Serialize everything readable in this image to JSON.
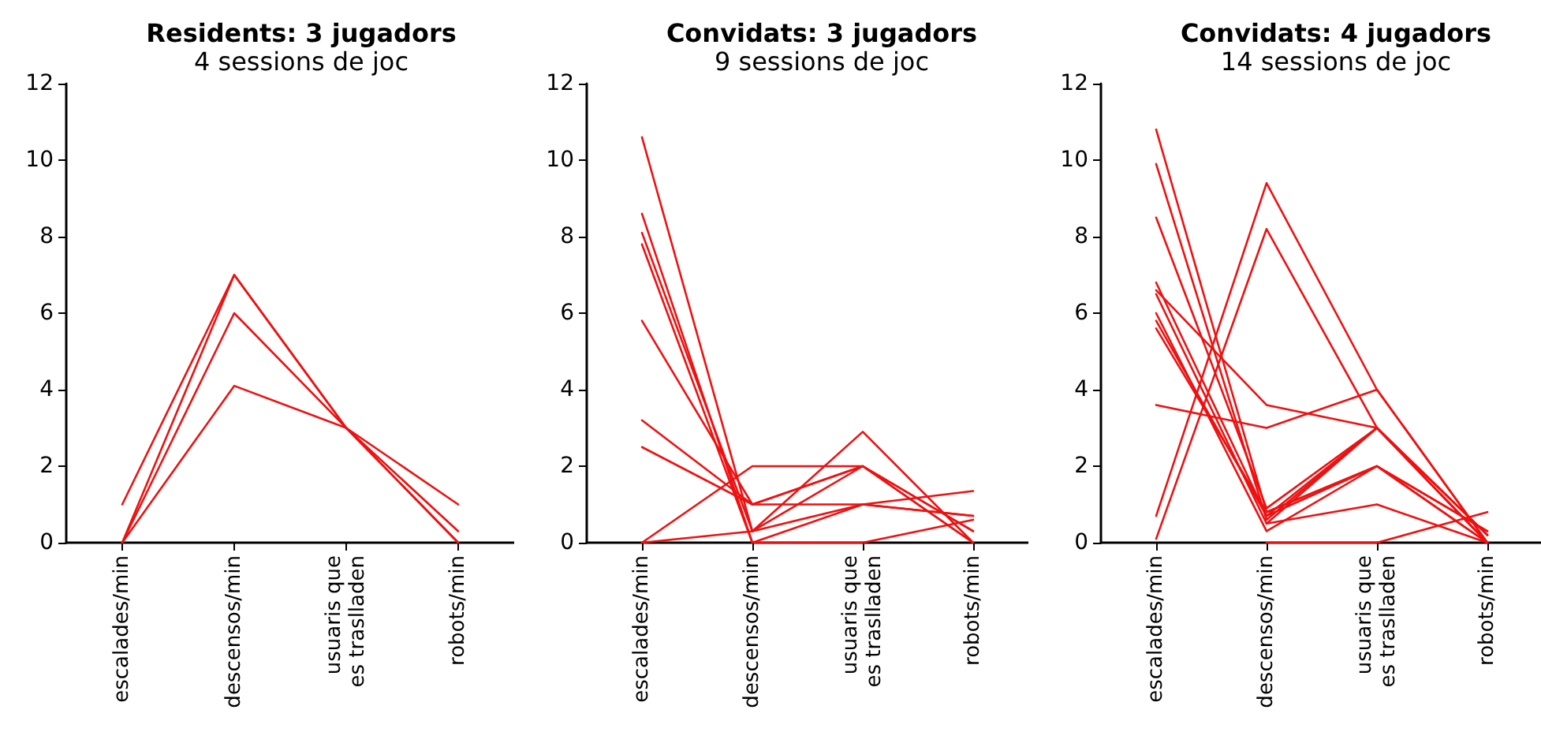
{
  "chart_data": [
    {
      "type": "line",
      "title": "Residents: 3 jugadors",
      "subtitle": "4 sessions de joc",
      "categories": [
        "escalades/min",
        "descensos/min",
        "usuaris que\nes traslladen",
        "robots/min"
      ],
      "ylim": [
        0,
        12
      ],
      "yticks": [
        0,
        2,
        4,
        6,
        8,
        10,
        12
      ],
      "grid": false,
      "marker": "none",
      "line_style": "solid",
      "series": [
        {
          "color": "#ee1111",
          "values": [
            1,
            7,
            3,
            0
          ]
        },
        {
          "color": "#ee1111",
          "values": [
            0,
            7,
            3,
            0.3
          ]
        },
        {
          "color": "#ee1111",
          "values": [
            0,
            6,
            3,
            0
          ]
        },
        {
          "color": "#ee1111",
          "values": [
            0,
            4.1,
            3,
            1
          ]
        }
      ]
    },
    {
      "type": "line",
      "title": "Convidats: 3 jugadors",
      "subtitle": "9 sessions de joc",
      "categories": [
        "escalades/min",
        "descensos/min",
        "usuaris que\nes traslladen",
        "robots/min"
      ],
      "ylim": [
        0,
        12
      ],
      "yticks": [
        0,
        2,
        4,
        6,
        8,
        10,
        12
      ],
      "grid": false,
      "marker": "none",
      "line_style": "solid",
      "series": [
        {
          "color": "#ee1111",
          "values": [
            10.6,
            0.3,
            2,
            0.3
          ]
        },
        {
          "color": "#ee1111",
          "values": [
            8.6,
            0,
            1,
            0.7
          ]
        },
        {
          "color": "#ee1111",
          "values": [
            8.1,
            0.3,
            2.9,
            0
          ]
        },
        {
          "color": "#ee1111",
          "values": [
            7.8,
            0,
            0,
            0.6
          ]
        },
        {
          "color": "#ee1111",
          "values": [
            5.8,
            1,
            2,
            0.3
          ]
        },
        {
          "color": "#ee1111",
          "values": [
            3.2,
            1,
            1,
            0.7
          ]
        },
        {
          "color": "#ee1111",
          "values": [
            2.5,
            1,
            2,
            0
          ]
        },
        {
          "color": "#ee1111",
          "values": [
            0,
            0.3,
            1,
            1.35
          ]
        },
        {
          "color": "#ee1111",
          "values": [
            0,
            2,
            2,
            0
          ]
        }
      ]
    },
    {
      "type": "line",
      "title": "Convidats: 4 jugadors",
      "subtitle": "14 sessions de joc",
      "categories": [
        "escalades/min",
        "descensos/min",
        "usuaris que\nes traslladen",
        "robots/min"
      ],
      "ylim": [
        0,
        12
      ],
      "yticks": [
        0,
        2,
        4,
        6,
        8,
        10,
        12
      ],
      "grid": false,
      "marker": "none",
      "line_style": "solid",
      "series": [
        {
          "color": "#ee1111",
          "values": [
            null,
            0.5,
            3,
            0.2
          ]
        },
        {
          "color": "#ee1111",
          "values": [
            null,
            0,
            0,
            0.8
          ]
        },
        {
          "color": "#ee1111",
          "values": [
            10.8,
            0.8,
            2,
            0
          ]
        },
        {
          "color": "#ee1111",
          "values": [
            9.9,
            0.6,
            3,
            0.2
          ]
        },
        {
          "color": "#ee1111",
          "values": [
            8.5,
            0.9,
            3,
            0
          ]
        },
        {
          "color": "#ee1111",
          "values": [
            6.8,
            0.7,
            2,
            0.3
          ]
        },
        {
          "color": "#ee1111",
          "values": [
            6.6,
            3.6,
            3,
            0
          ]
        },
        {
          "color": "#ee1111",
          "values": [
            6.5,
            0.5,
            1,
            0
          ]
        },
        {
          "color": "#ee1111",
          "values": [
            6,
            0.3,
            2,
            0.3
          ]
        },
        {
          "color": "#ee1111",
          "values": [
            5.8,
            0.7,
            3,
            0.2
          ]
        },
        {
          "color": "#ee1111",
          "values": [
            5.6,
            0.8,
            2,
            0
          ]
        },
        {
          "color": "#ee1111",
          "values": [
            3.6,
            3,
            4,
            0
          ]
        },
        {
          "color": "#ee1111",
          "values": [
            0.7,
            9.4,
            4,
            0
          ]
        },
        {
          "color": "#ee1111",
          "values": [
            0.1,
            8.2,
            3,
            0
          ]
        }
      ]
    }
  ]
}
